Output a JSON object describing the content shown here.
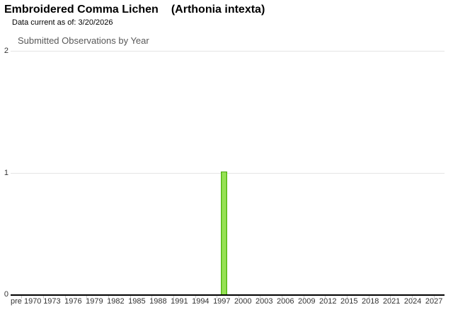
{
  "header": {
    "common_name": "Embroidered Comma Lichen",
    "scientific_name": "(Arthonia intexta)",
    "data_current": "Data current as of: 3/20/2026"
  },
  "chart_data": {
    "type": "bar",
    "title": "Submitted Observations by Year",
    "ylim": [
      0,
      2
    ],
    "yticks": [
      0,
      1,
      2
    ],
    "categories": [
      "pre 1970",
      "1973",
      "1976",
      "1979",
      "1982",
      "1985",
      "1988",
      "1991",
      "1994",
      "1997",
      "2000",
      "2003",
      "2006",
      "2009",
      "2012",
      "2015",
      "2018",
      "2021",
      "2024",
      "2027"
    ],
    "series": [
      {
        "name": "Submitted Observations",
        "points": [
          {
            "year": 1998,
            "value": 1
          }
        ]
      }
    ],
    "grid": true,
    "legend_position": "none",
    "colors": {
      "bar_edge": "#54b214",
      "bar_light": "#a9ea70",
      "bar_mid": "#86dc39",
      "gridline": "#e4e4e4",
      "axis": "#000000",
      "tick": "#c9c9c9",
      "axis_label_text": "#333333",
      "chart_title_text": "#595959"
    }
  }
}
